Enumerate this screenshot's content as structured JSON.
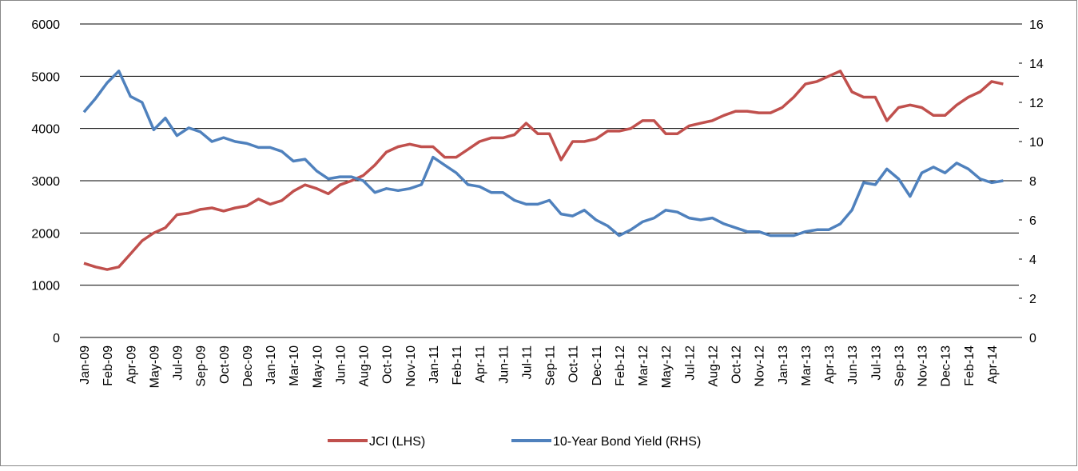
{
  "chart_data": {
    "type": "line",
    "categories": [
      "Jan-09",
      null,
      "Feb-09",
      null,
      "Apr-09",
      null,
      "May-09",
      null,
      "Jul-09",
      null,
      "Sep-09",
      null,
      "Oct-09",
      null,
      "Dec-09",
      null,
      "Jan-10",
      null,
      "Mar-10",
      null,
      "May-10",
      null,
      "Jun-10",
      null,
      "Aug-10",
      null,
      "Oct-10",
      null,
      "Nov-10",
      null,
      "Jan-11",
      null,
      "Feb-11",
      null,
      "Apr-11",
      null,
      "Jun-11",
      null,
      "Jul-11",
      null,
      "Sep-11",
      null,
      "Oct-11",
      null,
      "Dec-11",
      null,
      "Feb-12",
      null,
      "Mar-12",
      null,
      "May-12",
      null,
      "Jul-12",
      null,
      "Aug-12",
      null,
      "Oct-12",
      null,
      "Nov-12",
      null,
      "Jan-13",
      null,
      "Mar-13",
      null,
      "Apr-13",
      null,
      "Jun-13",
      null,
      "Jul-13",
      null,
      "Sep-13",
      null,
      "Nov-13",
      null,
      "Dec-13",
      null,
      "Feb-14",
      null,
      "Apr-14",
      null
    ],
    "series": [
      {
        "name": "JCI (LHS)",
        "color": "#c0504d",
        "axis": "y",
        "values": [
          1420,
          1350,
          1300,
          1350,
          1600,
          1850,
          2000,
          2100,
          2350,
          2380,
          2450,
          2480,
          2420,
          2480,
          2520,
          2650,
          2550,
          2620,
          2800,
          2920,
          2850,
          2750,
          2920,
          3000,
          3100,
          3300,
          3550,
          3650,
          3700,
          3650,
          3650,
          3450,
          3450,
          3600,
          3750,
          3820,
          3820,
          3880,
          4100,
          3900,
          3900,
          3400,
          3750,
          3750,
          3800,
          3950,
          3950,
          4000,
          4150,
          4150,
          3900,
          3900,
          4050,
          4100,
          4150,
          4250,
          4330,
          4330,
          4300,
          4300,
          4400,
          4600,
          4850,
          4900,
          5000,
          5100,
          4700,
          4600,
          4600,
          4150,
          4400,
          4450,
          4400,
          4250,
          4250,
          4450,
          4600,
          4700,
          4900,
          4850
        ]
      },
      {
        "name": "10-Year Bond Yield (RHS)",
        "color": "#4f81bd",
        "axis": "y2",
        "values": [
          11.5,
          12.2,
          13.0,
          13.6,
          12.3,
          12.0,
          10.6,
          11.2,
          10.3,
          10.7,
          10.5,
          10.0,
          10.2,
          10.0,
          9.9,
          9.7,
          9.7,
          9.5,
          9.0,
          9.1,
          8.5,
          8.1,
          8.2,
          8.2,
          8.0,
          7.4,
          7.6,
          7.5,
          7.6,
          7.8,
          9.2,
          8.8,
          8.4,
          7.8,
          7.7,
          7.4,
          7.4,
          7.0,
          6.8,
          6.8,
          7.0,
          6.3,
          6.2,
          6.5,
          6.0,
          5.7,
          5.2,
          5.5,
          5.9,
          6.1,
          6.5,
          6.4,
          6.1,
          6.0,
          6.1,
          5.8,
          5.6,
          5.4,
          5.4,
          5.2,
          5.2,
          5.2,
          5.4,
          5.5,
          5.5,
          5.8,
          6.5,
          7.9,
          7.8,
          8.6,
          8.1,
          7.2,
          8.4,
          8.7,
          8.4,
          8.9,
          8.6,
          8.1,
          7.9,
          8.0
        ]
      }
    ],
    "ylim": [
      0,
      6000
    ],
    "yticks": [
      0,
      1000,
      2000,
      3000,
      4000,
      5000,
      6000
    ],
    "y2lim": [
      0,
      16
    ],
    "y2ticks": [
      0,
      2,
      4,
      6,
      8,
      10,
      12,
      14,
      16
    ],
    "grid": true,
    "legend": "bottom"
  }
}
